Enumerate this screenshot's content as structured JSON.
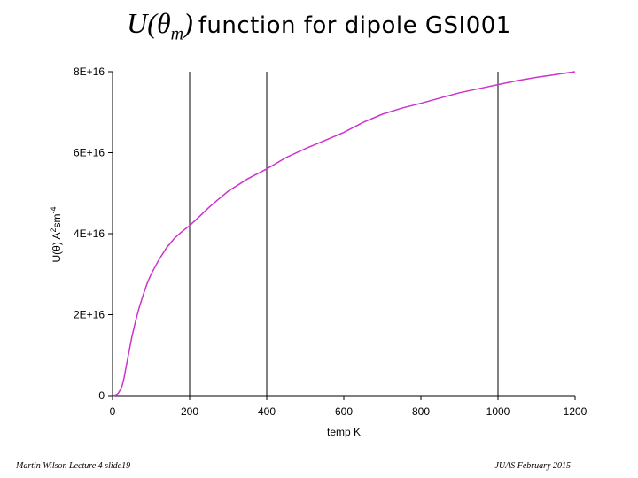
{
  "title": {
    "formula_main": "U(θ",
    "formula_sub": "m",
    "formula_close": ")",
    "text": "function for dipole GSI001"
  },
  "footer": {
    "left": "Martin Wilson Lecture 4 slide19",
    "right": "JUAS February 2015"
  },
  "chart_data": {
    "type": "line",
    "xlabel": "temp K",
    "ylabel_main": "U(θ)  A",
    "ylabel_sup1": "2",
    "ylabel_mid": "sm",
    "ylabel_sup2": "-4",
    "xlim": [
      0,
      1200
    ],
    "ylim": [
      0,
      8e+16
    ],
    "x_ticks": [
      0,
      200,
      400,
      600,
      800,
      1000,
      1200
    ],
    "x_tick_labels": [
      "0",
      "200",
      "400",
      "600",
      "800",
      "1000",
      "1200"
    ],
    "y_ticks": [
      0,
      2e+16,
      4e+16,
      6e+16,
      8e+16
    ],
    "y_tick_labels": [
      "0",
      "2E+16",
      "4E+16",
      "6E+16",
      "8E+16"
    ],
    "vertical_reference_lines": [
      200,
      400,
      1000
    ],
    "line_color": "#cc33cc",
    "series": [
      {
        "x": [
          0,
          10,
          15,
          20,
          25,
          30,
          35,
          40,
          45,
          50,
          60,
          70,
          80,
          90,
          100,
          120,
          140,
          160,
          180,
          200,
          225,
          250,
          275,
          300,
          350,
          400,
          450,
          500,
          550,
          600,
          650,
          700,
          750,
          800,
          850,
          900,
          950,
          1000,
          1050,
          1100,
          1150,
          1200
        ],
        "values": [
          0,
          200000000000000.0,
          600000000000000.0,
          1400000000000000.0,
          2500000000000000.0,
          4500000000000000.0,
          7000000000000000.0,
          9500000000000000.0,
          1.2e+16,
          1.45e+16,
          1.85e+16,
          2.2e+16,
          2.5e+16,
          2.78e+16,
          3e+16,
          3.35e+16,
          3.65e+16,
          3.88e+16,
          4.05e+16,
          4.2e+16,
          4.42e+16,
          4.65e+16,
          4.85e+16,
          5.05e+16,
          5.35e+16,
          5.6e+16,
          5.88e+16,
          6.1e+16,
          6.3e+16,
          6.5e+16,
          6.75e+16,
          6.95e+16,
          7.1e+16,
          7.22e+16,
          7.35e+16,
          7.48e+16,
          7.58e+16,
          7.68e+16,
          7.78e+16,
          7.86e+16,
          7.93e+16,
          8e+16
        ]
      }
    ]
  }
}
